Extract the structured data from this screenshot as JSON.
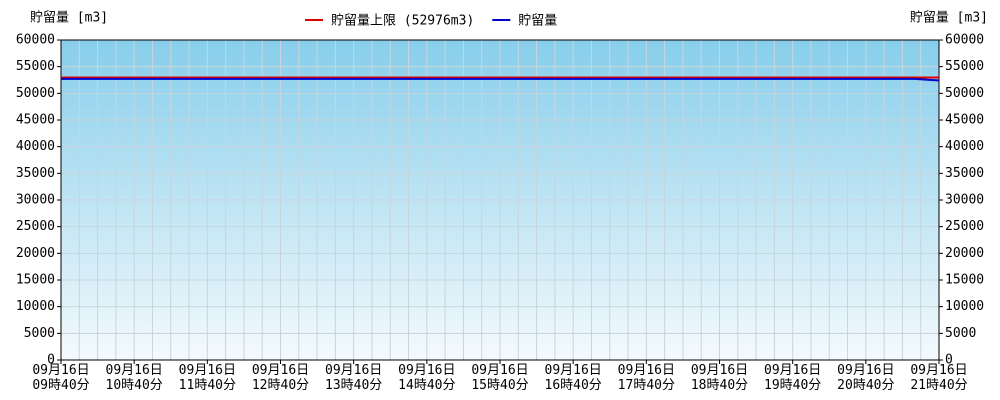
{
  "chart_data": {
    "type": "line",
    "ylabel": "貯留量 [m3]",
    "y2label": "貯留量 [m3]",
    "ylim": [
      0,
      60000
    ],
    "yticks": [
      0,
      5000,
      10000,
      15000,
      20000,
      25000,
      30000,
      35000,
      40000,
      45000,
      50000,
      55000,
      60000
    ],
    "y2lim": [
      0,
      60000
    ],
    "y2ticks": [
      0,
      5000,
      10000,
      15000,
      20000,
      25000,
      30000,
      35000,
      40000,
      45000,
      50000,
      55000,
      60000
    ],
    "xticks": [
      "09月16日\n09時40分",
      "09月16日\n10時40分",
      "09月16日\n11時40分",
      "09月16日\n12時40分",
      "09月16日\n13時40分",
      "09月16日\n14時40分",
      "09月16日\n15時40分",
      "09月16日\n16時40分",
      "09月16日\n17時40分",
      "09月16日\n18時40分",
      "09月16日\n19時40分",
      "09月16日\n20時40分",
      "09月16日\n21時40分"
    ],
    "x": [
      "09月16日\n09時40分",
      "09月16日\n10時40分",
      "09月16日\n11時40分",
      "09月16日\n12時40分",
      "09月16日\n13時40分",
      "09月16日\n14時40分",
      "09月16日\n15時40分",
      "09月16日\n16時40分",
      "09月16日\n17時40分",
      "09月16日\n18時40分",
      "09月16日\n19時40分",
      "09月16日\n20時40分",
      "09月16日\n21時20分",
      "09月16日\n21時40分"
    ],
    "grid": true,
    "legend": "top",
    "series": [
      {
        "name": "貯留量上限 (52976m3)",
        "color": "#e00000",
        "values": [
          52976,
          52976,
          52976,
          52976,
          52976,
          52976,
          52976,
          52976,
          52976,
          52976,
          52976,
          52976,
          52976,
          52976
        ]
      },
      {
        "name": "貯留量",
        "color": "#0000cc",
        "values": [
          52700,
          52700,
          52700,
          52700,
          52700,
          52700,
          52700,
          52700,
          52700,
          52700,
          52700,
          52700,
          52700,
          52400
        ]
      }
    ]
  }
}
